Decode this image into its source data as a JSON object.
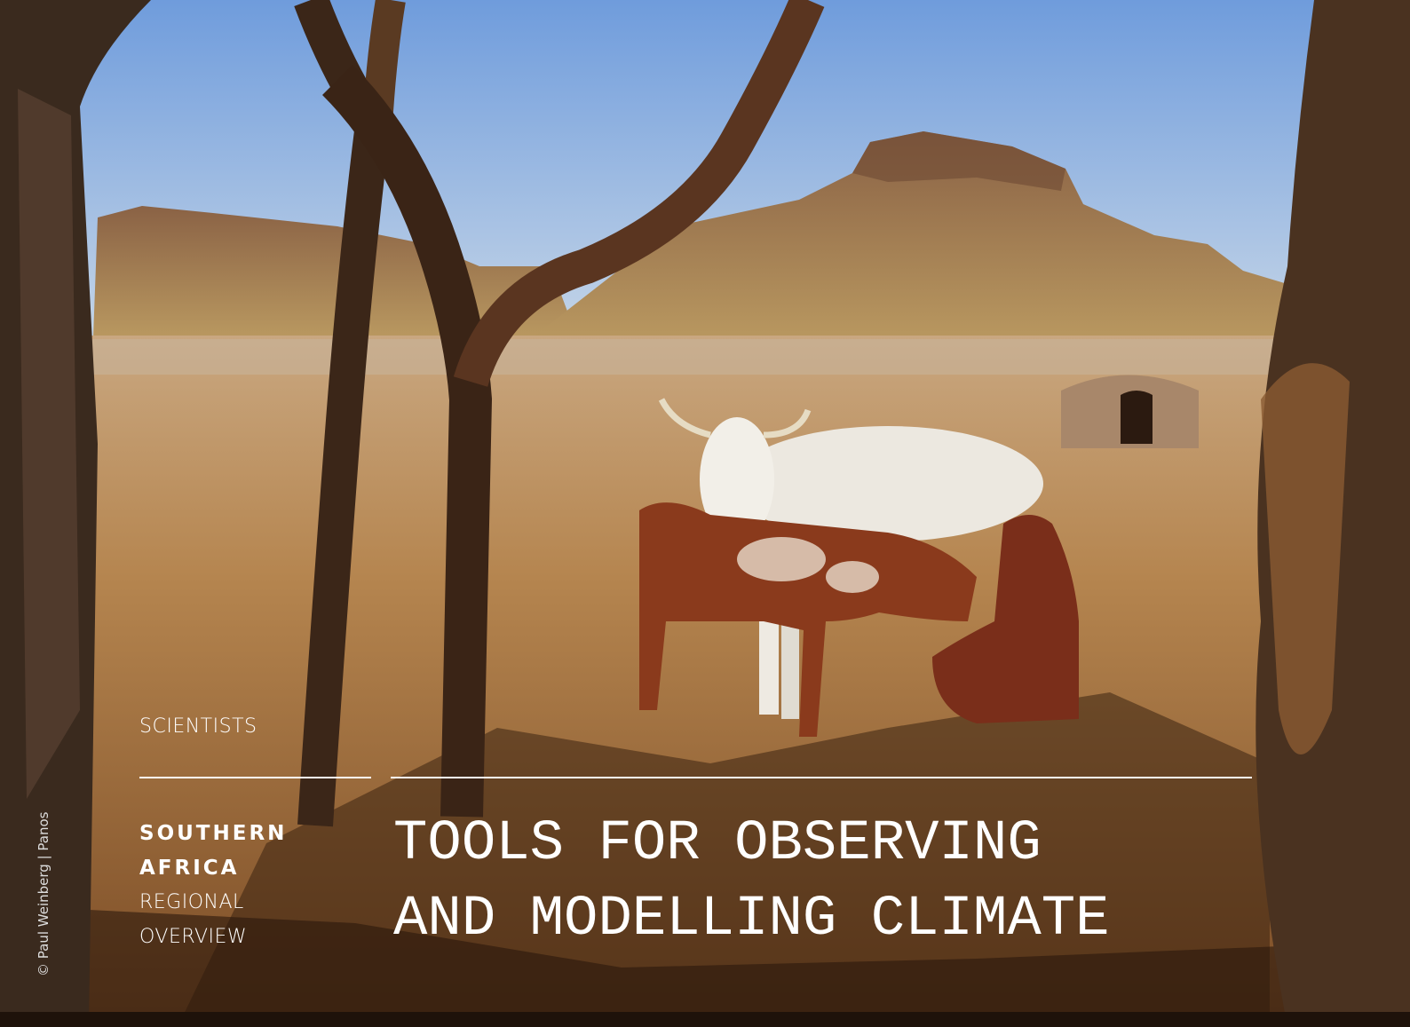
{
  "section": "SCIENTISTS",
  "region": [
    "SOUTHERN",
    "AFRICA"
  ],
  "subtitle": [
    "REGIONAL",
    "OVERVIEW"
  ],
  "title": [
    "TOOLS FOR OBSERVING",
    "AND MODELLING CLIMATE"
  ],
  "credit": "© Paul Weinberg | Panos"
}
